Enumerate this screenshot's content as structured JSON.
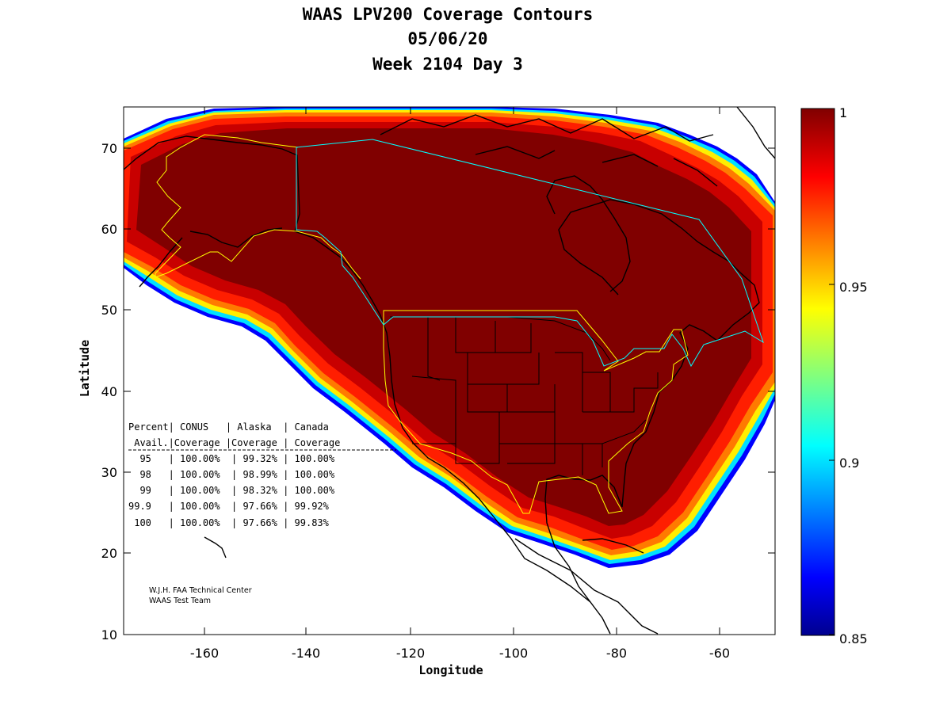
{
  "title": {
    "line1": "WAAS LPV200 Coverage Contours",
    "line2": "05/06/20",
    "line3": "Week 2104 Day 3"
  },
  "axes": {
    "xlabel": "Longitude",
    "ylabel": "Latitude",
    "xticks": [
      "-160",
      "-140",
      "-120",
      "-100",
      "-80",
      "-60"
    ],
    "yticks": [
      "70",
      "60",
      "50",
      "40",
      "30",
      "20",
      "10"
    ],
    "xrange": [
      -175,
      -50
    ],
    "yrange": [
      10,
      75
    ]
  },
  "colorbar": {
    "ticks": [
      "1",
      "0.95",
      "0.9",
      "0.85"
    ],
    "range": [
      0.85,
      1
    ],
    "colormap": "jet"
  },
  "stats_table": {
    "header1": "Percent| CONUS   | Alaska  | Canada",
    "header2": " Avail.|Coverage |Coverage | Coverage",
    "rows": [
      "  95   | 100.00%  | 99.32% | 100.00%",
      "  98   | 100.00%  | 98.99% | 100.00%",
      "  99   | 100.00%  | 98.32% | 100.00%",
      "99.9   | 100.00%  | 97.66% | 99.92%",
      " 100   | 100.00%  | 97.66% | 99.83%"
    ]
  },
  "credit": {
    "line1": "W.J.H. FAA Technical Center",
    "line2": "WAAS Test Team"
  },
  "colors": {
    "coverage_core": "#800000",
    "conus_alaska_boundary": "#ffff00",
    "canada_boundary": "#00ffff",
    "coastline": "#000000"
  }
}
